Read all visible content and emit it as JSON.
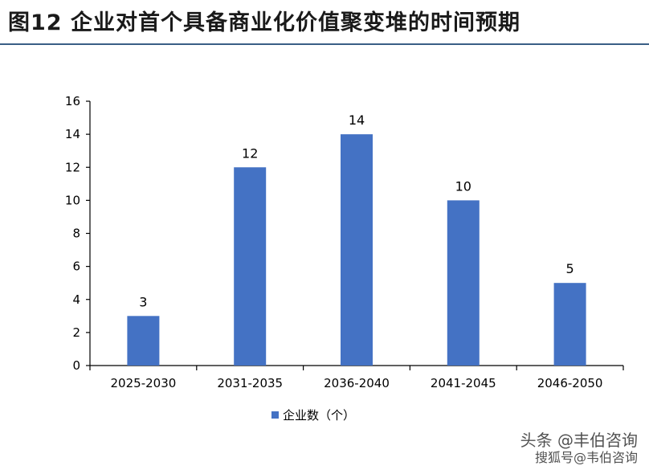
{
  "title": "图12  企业对首个具备商业化价值聚变堆的时间预期",
  "colors": {
    "bar": "#4472c4",
    "axis": "#000000",
    "text": "#000000",
    "title_rule": "#3a5f86"
  },
  "chart_data": {
    "type": "bar",
    "categories": [
      "2025-2030",
      "2031-2035",
      "2036-2040",
      "2041-2045",
      "2046-2050"
    ],
    "series": [
      {
        "name": "企业数（个）",
        "values": [
          3,
          12,
          14,
          10,
          5
        ]
      }
    ],
    "data_labels": [
      "3",
      "12",
      "14",
      "10",
      "5"
    ],
    "y_ticks": [
      "0",
      "2",
      "4",
      "6",
      "8",
      "10",
      "12",
      "14",
      "16"
    ],
    "ylim": [
      0,
      16
    ],
    "grid": false,
    "legend_position": "bottom"
  },
  "watermark": {
    "line1": "头条 @丰伯咨询",
    "line2": "搜狐号@韦伯咨询"
  }
}
